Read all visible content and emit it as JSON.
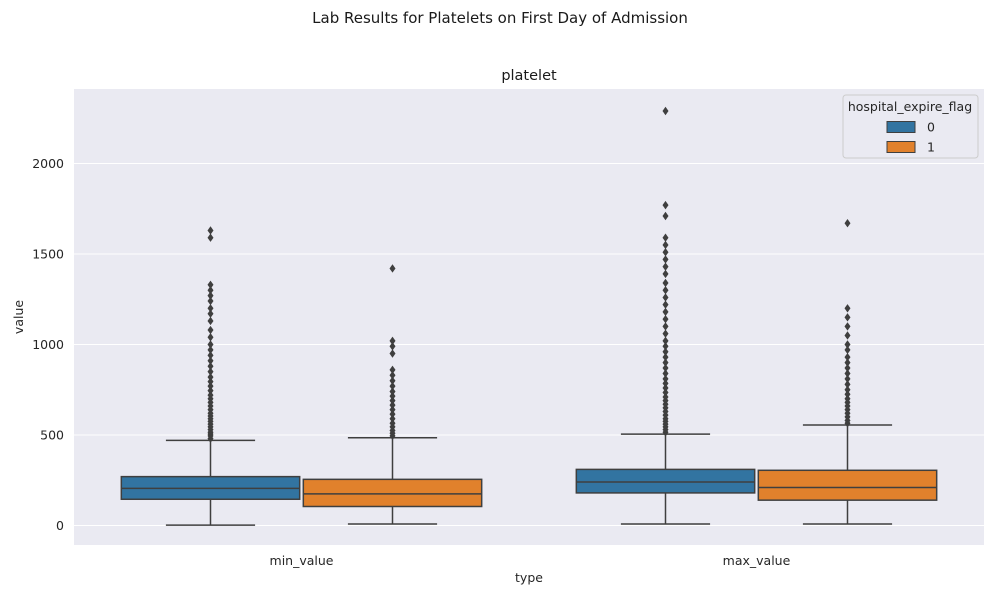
{
  "suptitle": "Lab Results for Platelets on First Day of Admission",
  "chart_data": {
    "type": "box",
    "title": "platelet",
    "xlabel": "type",
    "ylabel": "value",
    "categories": [
      "min_value",
      "max_value"
    ],
    "ylim": [
      -100,
      2400
    ],
    "yticks": [
      0,
      500,
      1000,
      1500,
      2000
    ],
    "grid": true,
    "legend": {
      "title": "hospital_expire_flag",
      "position": "top-right"
    },
    "series": [
      {
        "name": "0",
        "color": "#3274a1",
        "boxes": [
          {
            "category": "min_value",
            "whisker_low": 2,
            "q1": 145,
            "median": 205,
            "q3": 270,
            "whisker_high": 470,
            "outliers": [
              480,
              495,
              505,
              515,
              530,
              545,
              560,
              575,
              590,
              605,
              620,
              640,
              660,
              680,
              700,
              720,
              745,
              770,
              795,
              820,
              850,
              880,
              910,
              940,
              970,
              1000,
              1040,
              1080,
              1130,
              1170,
              1200,
              1240,
              1270,
              1300,
              1330,
              1590,
              1630
            ]
          },
          {
            "category": "max_value",
            "whisker_low": 8,
            "q1": 180,
            "median": 240,
            "q3": 310,
            "whisker_high": 505,
            "outliers": [
              515,
              530,
              545,
              560,
              575,
              590,
              610,
              630,
              650,
              670,
              690,
              710,
              735,
              760,
              785,
              810,
              840,
              870,
              900,
              930,
              960,
              990,
              1020,
              1060,
              1100,
              1140,
              1180,
              1220,
              1260,
              1300,
              1340,
              1390,
              1430,
              1470,
              1510,
              1550,
              1590,
              1710,
              1770,
              2290
            ]
          }
        ]
      },
      {
        "name": "1",
        "color": "#e1812c",
        "boxes": [
          {
            "category": "min_value",
            "whisker_low": 8,
            "q1": 105,
            "median": 175,
            "q3": 255,
            "whisker_high": 485,
            "outliers": [
              495,
              510,
              525,
              545,
              565,
              590,
              615,
              640,
              665,
              690,
              715,
              740,
              770,
              800,
              830,
              860,
              950,
              990,
              1020,
              1420
            ]
          },
          {
            "category": "max_value",
            "whisker_low": 8,
            "q1": 140,
            "median": 210,
            "q3": 305,
            "whisker_high": 555,
            "outliers": [
              565,
              580,
              600,
              620,
              640,
              660,
              680,
              700,
              725,
              750,
              780,
              810,
              840,
              870,
              900,
              930,
              970,
              1000,
              1050,
              1100,
              1150,
              1200,
              1670
            ]
          }
        ]
      }
    ]
  }
}
